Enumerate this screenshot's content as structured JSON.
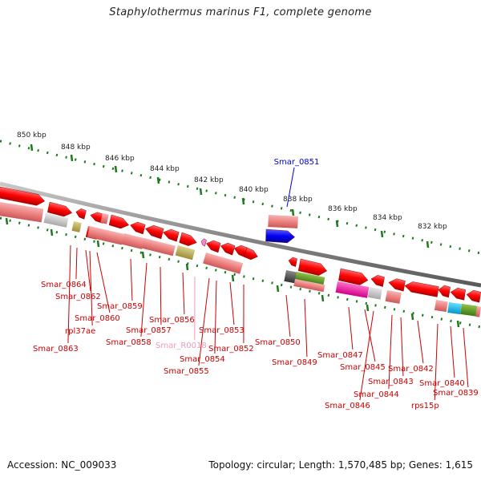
{
  "title": "Staphylothermus marinus F1, complete genome",
  "footer": {
    "accession": "Accession: NC_009033",
    "summary": "Topology: circular; Length: 1,570,485 bp; Genes: 1,615"
  },
  "colors": {
    "background": "#ffffff",
    "backbone": "#888888",
    "ruler": "#1b7a1b",
    "gene_red": "#ff0000",
    "gene_pale": "#f08a8a",
    "label_red": "#cc0000",
    "label_blue": "#0000cc",
    "label_pink": "#ee99bb"
  },
  "ruler_ticks": [
    "850 kbp",
    "848 kbp",
    "846 kbp",
    "844 kbp",
    "842 kbp",
    "840 kbp",
    "838 kbp",
    "836 kbp",
    "834 kbp",
    "832 kbp"
  ],
  "highlight_label": "Smar_0851",
  "gene_labels": [
    "Smar_0864",
    "Smar_0862",
    "Smar_0860",
    "rpl37ae",
    "Smar_0863",
    "Smar_0859",
    "Smar_0858",
    "Smar_0857",
    "Smar_0856",
    "Smar_R0018",
    "Smar_0855",
    "Smar_0854",
    "Smar_0853",
    "Smar_0852",
    "Smar_0850",
    "Smar_0849",
    "Smar_0847",
    "Smar_0846",
    "Smar_0845",
    "Smar_0844",
    "Smar_0843",
    "Smar_0842",
    "rps15p",
    "Smar_0840",
    "Smar_0839"
  ]
}
